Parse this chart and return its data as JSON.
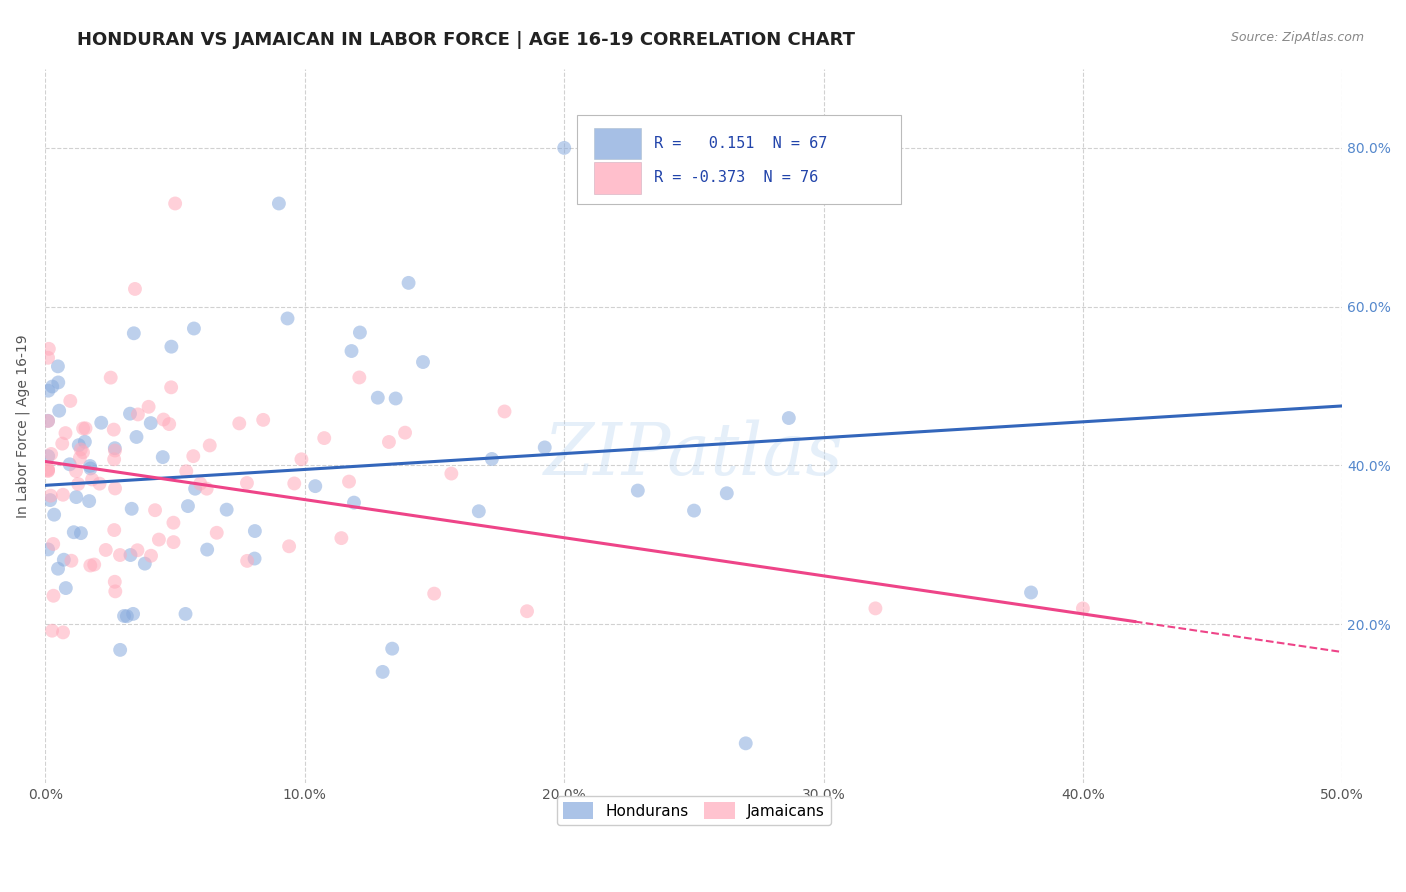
{
  "title": "HONDURAN VS JAMAICAN IN LABOR FORCE | AGE 16-19 CORRELATION CHART",
  "source": "Source: ZipAtlas.com",
  "ylabel": "In Labor Force | Age 16-19",
  "xlim": [
    0.0,
    0.5
  ],
  "ylim": [
    0.0,
    0.9
  ],
  "xticks": [
    0.0,
    0.1,
    0.2,
    0.3,
    0.4,
    0.5
  ],
  "xtick_labels": [
    "0.0%",
    "10.0%",
    "20.0%",
    "30.0%",
    "40.0%",
    "50.0%"
  ],
  "yticks": [
    0.2,
    0.4,
    0.6,
    0.8
  ],
  "ytick_labels": [
    "20.0%",
    "40.0%",
    "60.0%",
    "80.0%"
  ],
  "grid_color": "#cccccc",
  "bg_color": "#ffffff",
  "honduran_color": "#88aadd",
  "jamaican_color": "#ffaabb",
  "honduran_line_color": "#3366bb",
  "jamaican_line_color": "#ee4488",
  "honduran_R": 0.151,
  "honduran_N": 67,
  "jamaican_R": -0.373,
  "jamaican_N": 76,
  "watermark": "ZIPatlas",
  "title_fontsize": 13,
  "axis_label_fontsize": 10,
  "tick_fontsize": 10,
  "legend_fontsize": 11,
  "marker_size": 100,
  "marker_alpha": 0.55,
  "seed": 42,
  "honduran_line_intercept": 0.375,
  "honduran_line_slope": 0.2,
  "jamaican_line_intercept": 0.405,
  "jamaican_line_slope": -0.48
}
